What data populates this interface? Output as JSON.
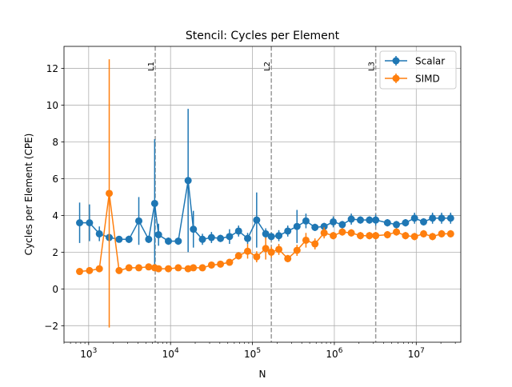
{
  "chart_data": {
    "type": "line",
    "title": "Stencil: Cycles per Element",
    "xlabel": "N",
    "ylabel": "Cycles per Element (CPE)",
    "xscale": "log",
    "xlim": [
      500,
      35000000
    ],
    "ylim": [
      -2.9,
      13.2
    ],
    "xticks": [
      {
        "value": 1000,
        "base": "10",
        "exp": "3"
      },
      {
        "value": 10000,
        "base": "10",
        "exp": "4"
      },
      {
        "value": 100000,
        "base": "10",
        "exp": "5"
      },
      {
        "value": 1000000,
        "base": "10",
        "exp": "6"
      },
      {
        "value": 10000000,
        "base": "10",
        "exp": "7"
      }
    ],
    "yticks": [
      {
        "value": -2,
        "label": "−2"
      },
      {
        "value": 0,
        "label": "0"
      },
      {
        "value": 2,
        "label": "2"
      },
      {
        "value": 4,
        "label": "4"
      },
      {
        "value": 6,
        "label": "6"
      },
      {
        "value": 8,
        "label": "8"
      },
      {
        "value": 10,
        "label": "10"
      },
      {
        "value": 12,
        "label": "12"
      }
    ],
    "grid": true,
    "legend_position": "top-right",
    "cache_lines": [
      {
        "label": "L1",
        "x": 6500
      },
      {
        "label": "L2",
        "x": 170000
      },
      {
        "label": "L3",
        "x": 3200000
      }
    ],
    "x": [
      776,
      1024,
      1351,
      1783,
      2353,
      3105,
      4097,
      5406,
      6400,
      7134,
      9414,
      12422,
      16392,
      19000,
      24500,
      31600,
      40700,
      52500,
      67700,
      87300,
      112600,
      145200,
      170000,
      210000,
      270000,
      350000,
      450000,
      580000,
      750000,
      970000,
      1250000,
      1610000,
      2080000,
      2680000,
      3200000,
      4450000,
      5730000,
      7390000,
      9530000,
      12300000,
      15800000,
      20400000,
      26300000
    ],
    "series": [
      {
        "name": "Scalar",
        "color": "#1f77b4",
        "values": [
          3.6,
          3.6,
          3.0,
          2.8,
          2.7,
          2.7,
          3.7,
          2.7,
          4.65,
          2.95,
          2.6,
          2.6,
          5.9,
          3.25,
          2.7,
          2.8,
          2.75,
          2.85,
          3.15,
          2.75,
          3.75,
          3.0,
          2.85,
          2.9,
          3.15,
          3.4,
          3.7,
          3.35,
          3.4,
          3.65,
          3.5,
          3.8,
          3.75,
          3.75,
          3.75,
          3.6,
          3.5,
          3.6,
          3.85,
          3.65,
          3.85,
          3.85,
          3.85
        ],
        "err": [
          1.1,
          1.0,
          0.4,
          0.2,
          0.15,
          0.2,
          1.3,
          0.2,
          3.5,
          0.6,
          0.2,
          0.2,
          3.9,
          1.0,
          0.3,
          0.3,
          0.2,
          0.4,
          0.3,
          0.3,
          1.5,
          0.3,
          0.2,
          0.3,
          0.3,
          0.9,
          0.4,
          0.2,
          0.2,
          0.3,
          0.2,
          0.3,
          0.2,
          0.2,
          0.3,
          0.2,
          0.2,
          0.2,
          0.3,
          0.2,
          0.3,
          0.3,
          0.3
        ]
      },
      {
        "name": "SIMD",
        "color": "#ff7f0e",
        "values": [
          0.95,
          1.0,
          1.1,
          5.2,
          1.0,
          1.15,
          1.15,
          1.2,
          1.15,
          1.1,
          1.1,
          1.15,
          1.1,
          1.15,
          1.15,
          1.3,
          1.35,
          1.45,
          1.8,
          2.05,
          1.75,
          2.2,
          2.0,
          2.15,
          1.65,
          2.1,
          2.65,
          2.45,
          3.05,
          2.9,
          3.1,
          3.05,
          2.9,
          2.9,
          2.9,
          2.95,
          3.1,
          2.9,
          2.85,
          3.0,
          2.85,
          3.0,
          3.0
        ],
        "err": [
          0.1,
          0.1,
          0.1,
          7.3,
          0.1,
          0.1,
          0.1,
          0.1,
          0.1,
          0.1,
          0.1,
          0.1,
          0.1,
          0.1,
          0.1,
          0.1,
          0.1,
          0.1,
          0.2,
          0.4,
          0.3,
          0.6,
          0.3,
          0.3,
          0.2,
          0.3,
          0.4,
          0.3,
          0.3,
          0.2,
          0.2,
          0.2,
          0.2,
          0.2,
          0.2,
          0.2,
          0.2,
          0.2,
          0.2,
          0.2,
          0.2,
          0.2,
          0.2
        ]
      }
    ]
  }
}
